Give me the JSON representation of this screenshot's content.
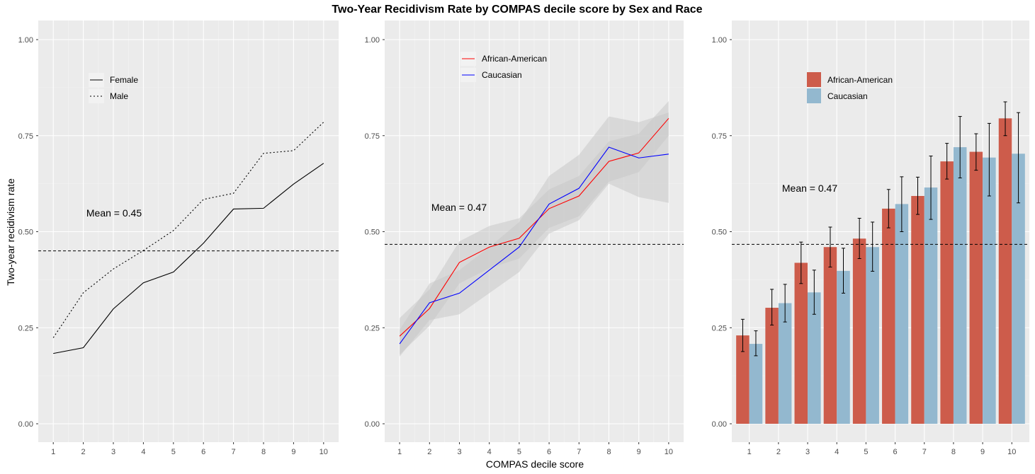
{
  "title": "Two-Year Recidivism Rate by COMPAS decile score by Sex and Race",
  "xlabel": "COMPAS decile score",
  "ylabel": "Two-year recidivism rate",
  "colors": {
    "panel_bg": "#ebebeb",
    "grid": "#ffffff",
    "african_american_line": "#ff0000",
    "caucasian_line": "#0000ff",
    "african_american_bar": "#cd5c4b",
    "caucasian_bar": "#93b8cf",
    "ribbon": "#c9c9c9"
  },
  "chart_data": [
    {
      "type": "line",
      "x": [
        1,
        2,
        3,
        4,
        5,
        6,
        7,
        8,
        9,
        10
      ],
      "ylim": [
        0,
        1
      ],
      "yticks": [
        "0.00",
        "0.25",
        "0.50",
        "0.75",
        "1.00"
      ],
      "xticks": [
        "1",
        "2",
        "3",
        "4",
        "5",
        "6",
        "7",
        "8",
        "9",
        "10"
      ],
      "series": [
        {
          "name": "Female",
          "style": "solid",
          "values": [
            0.183,
            0.198,
            0.299,
            0.367,
            0.395,
            0.47,
            0.559,
            0.561,
            0.624,
            0.678
          ]
        },
        {
          "name": "Male",
          "style": "dotted",
          "values": [
            0.224,
            0.341,
            0.403,
            0.451,
            0.503,
            0.584,
            0.6,
            0.704,
            0.711,
            0.785
          ]
        }
      ],
      "mean_line": 0.45,
      "mean_label": "Mean = 0.45",
      "legend": "top-left"
    },
    {
      "type": "line",
      "x": [
        1,
        2,
        3,
        4,
        5,
        6,
        7,
        8,
        9,
        10
      ],
      "ylim": [
        0,
        1
      ],
      "yticks": [
        "0.00",
        "0.25",
        "0.50",
        "0.75",
        "1.00"
      ],
      "xticks": [
        "1",
        "2",
        "3",
        "4",
        "5",
        "6",
        "7",
        "8",
        "9",
        "10"
      ],
      "series": [
        {
          "name": "African-American",
          "style": "solid",
          "values": [
            0.228,
            0.3,
            0.42,
            0.46,
            0.483,
            0.56,
            0.593,
            0.683,
            0.705,
            0.795
          ],
          "lower": [
            0.18,
            0.255,
            0.365,
            0.405,
            0.43,
            0.51,
            0.54,
            0.63,
            0.655,
            0.75
          ],
          "upper": [
            0.275,
            0.35,
            0.475,
            0.515,
            0.535,
            0.61,
            0.645,
            0.735,
            0.755,
            0.84
          ]
        },
        {
          "name": "Caucasian",
          "style": "solid",
          "values": [
            0.208,
            0.315,
            0.34,
            0.4,
            0.46,
            0.572,
            0.613,
            0.72,
            0.692,
            0.702
          ],
          "lower": [
            0.175,
            0.27,
            0.285,
            0.34,
            0.395,
            0.495,
            0.53,
            0.625,
            0.59,
            0.575
          ],
          "upper": [
            0.245,
            0.365,
            0.4,
            0.46,
            0.525,
            0.645,
            0.7,
            0.8,
            0.785,
            0.81
          ]
        }
      ],
      "mean_line": 0.467,
      "mean_label": "Mean = 0.47",
      "legend": "top-center"
    },
    {
      "type": "bar",
      "categories": [
        "1",
        "2",
        "3",
        "4",
        "5",
        "6",
        "7",
        "8",
        "9",
        "10"
      ],
      "ylim": [
        0,
        1
      ],
      "yticks": [
        "0.00",
        "0.25",
        "0.50",
        "0.75",
        "1.00"
      ],
      "series": [
        {
          "name": "African-American",
          "values": [
            0.23,
            0.302,
            0.419,
            0.46,
            0.482,
            0.56,
            0.593,
            0.683,
            0.708,
            0.795
          ],
          "lower": [
            0.188,
            0.257,
            0.365,
            0.408,
            0.43,
            0.51,
            0.545,
            0.637,
            0.66,
            0.75
          ],
          "upper": [
            0.272,
            0.35,
            0.473,
            0.512,
            0.535,
            0.61,
            0.642,
            0.73,
            0.755,
            0.838
          ]
        },
        {
          "name": "Caucasian",
          "values": [
            0.208,
            0.314,
            0.342,
            0.398,
            0.46,
            0.572,
            0.615,
            0.72,
            0.693,
            0.703
          ],
          "lower": [
            0.177,
            0.265,
            0.285,
            0.34,
            0.397,
            0.5,
            0.532,
            0.64,
            0.593,
            0.575
          ],
          "upper": [
            0.242,
            0.363,
            0.4,
            0.457,
            0.525,
            0.643,
            0.697,
            0.8,
            0.782,
            0.81
          ]
        }
      ],
      "mean_line": 0.467,
      "mean_label": "Mean = 0.47",
      "legend": "top-left"
    }
  ]
}
